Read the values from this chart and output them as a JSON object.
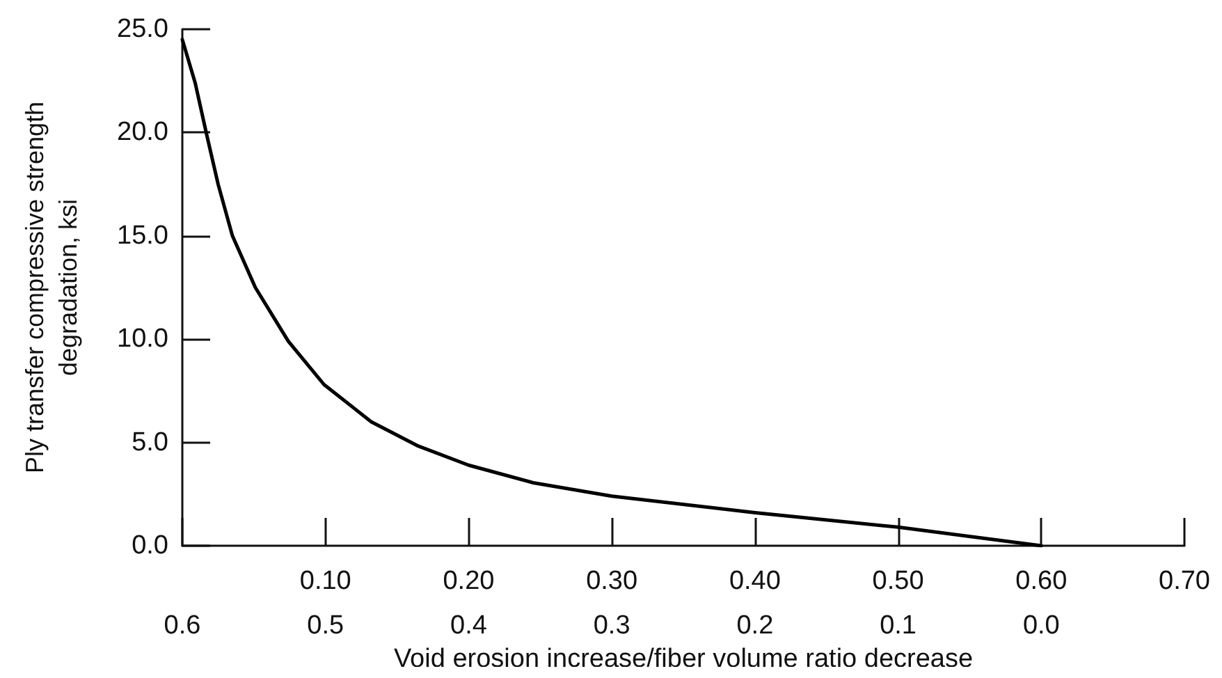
{
  "chart_data": {
    "type": "line",
    "xlabel": "Void erosion increase/fiber volume ratio decrease",
    "ylabel": "Ply transfer compressive strength\ndegradation, ksi",
    "x": [
      0,
      0.009,
      0.017,
      0.025,
      0.035,
      0.051,
      0.074,
      0.099,
      0.132,
      0.164,
      0.2,
      0.245,
      0.3,
      0.4,
      0.5,
      0.6
    ],
    "series": [
      {
        "color": "#000000",
        "values": [
          24.5,
          22.4,
          19.9,
          17.5,
          15.0,
          12.5,
          9.9,
          7.8,
          6.0,
          4.85,
          3.9,
          3.05,
          2.4,
          1.6,
          0.9,
          0
        ]
      }
    ],
    "xlim": [
      0,
      0.7
    ],
    "xticks": [
      {
        "value": 0,
        "label": null
      },
      {
        "value": 0.1,
        "label": "0.10"
      },
      {
        "value": 0.2,
        "label": "0.20"
      },
      {
        "value": 0.3,
        "label": "0.30"
      },
      {
        "value": 0.4,
        "label": "0.40"
      },
      {
        "value": 0.5,
        "label": "0.50"
      },
      {
        "value": 0.6,
        "label": "0.60"
      },
      {
        "value": 0.7,
        "label": "0.70"
      }
    ],
    "x2lim": [
      0.6,
      -0.1
    ],
    "x2ticks": [
      0.6,
      0.5,
      0.4,
      0.3,
      0.2,
      0.1,
      {
        "value": 0,
        "label": "0.0"
      }
    ],
    "ylim": [
      0,
      25
    ],
    "yticks": [
      {
        "value": 0,
        "label": "0.0"
      },
      {
        "value": 5,
        "label": "5.0"
      },
      {
        "value": 10,
        "label": "10.0"
      },
      {
        "value": 15,
        "label": "15.0"
      },
      {
        "value": 20,
        "label": "20.0"
      },
      {
        "value": 25,
        "label": "25.0"
      }
    ],
    "marker": "none",
    "line_style": "solid"
  }
}
